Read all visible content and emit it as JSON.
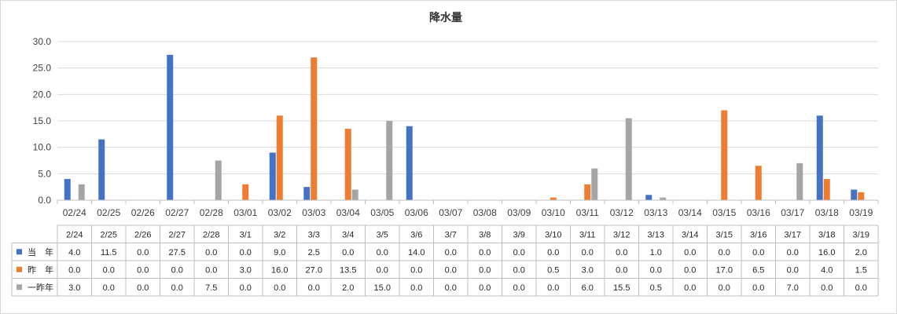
{
  "chart_data": {
    "type": "bar",
    "title": "降水量",
    "xlabel": "",
    "ylabel": "",
    "ylim": [
      0,
      30
    ],
    "yticks": [
      "0.0",
      "5.0",
      "10.0",
      "15.0",
      "20.0",
      "25.0",
      "30.0"
    ],
    "grid": true,
    "legend": "table-left",
    "categories": [
      "02/24",
      "02/25",
      "02/26",
      "02/27",
      "02/28",
      "03/01",
      "03/02",
      "03/03",
      "03/04",
      "03/05",
      "03/06",
      "03/07",
      "03/08",
      "03/09",
      "03/10",
      "03/11",
      "03/12",
      "03/13",
      "03/14",
      "03/15",
      "03/16",
      "03/17",
      "03/18",
      "03/19"
    ],
    "table_categories": [
      "2/24",
      "2/25",
      "2/26",
      "2/27",
      "2/28",
      "3/1",
      "3/2",
      "3/3",
      "3/4",
      "3/5",
      "3/6",
      "3/7",
      "3/8",
      "3/9",
      "3/10",
      "3/11",
      "3/12",
      "3/13",
      "3/14",
      "3/15",
      "3/16",
      "3/17",
      "3/18",
      "3/19"
    ],
    "series": [
      {
        "name": "当　年",
        "color": "#4472c4",
        "values": [
          4.0,
          11.5,
          0.0,
          27.5,
          0.0,
          0.0,
          9.0,
          2.5,
          0.0,
          0.0,
          14.0,
          0.0,
          0.0,
          0.0,
          0.0,
          0.0,
          0.0,
          1.0,
          0.0,
          0.0,
          0.0,
          0.0,
          16.0,
          2.0
        ],
        "labels": [
          "4.0",
          "11.5",
          "0.0",
          "27.5",
          "0.0",
          "0.0",
          "9.0",
          "2.5",
          "0.0",
          "0.0",
          "14.0",
          "0.0",
          "0.0",
          "0.0",
          "0.0",
          "0.0",
          "0.0",
          "1.0",
          "0.0",
          "0.0",
          "0.0",
          "0.0",
          "16.0",
          "2.0"
        ]
      },
      {
        "name": "昨　年",
        "color": "#ed7d31",
        "values": [
          0.0,
          0.0,
          0.0,
          0.0,
          0.0,
          3.0,
          16.0,
          27.0,
          13.5,
          0.0,
          0.0,
          0.0,
          0.0,
          0.0,
          0.5,
          3.0,
          0.0,
          0.0,
          0.0,
          17.0,
          6.5,
          0.0,
          4.0,
          1.5
        ],
        "labels": [
          "0.0",
          "0.0",
          "0.0",
          "0.0",
          "0.0",
          "3.0",
          "16.0",
          "27.0",
          "13.5",
          "0.0",
          "0.0",
          "0.0",
          "0.0",
          "0.0",
          "0.5",
          "3.0",
          "0.0",
          "0.0",
          "0.0",
          "17.0",
          "6.5",
          "0.0",
          "4.0",
          "1.5"
        ]
      },
      {
        "name": "一昨年",
        "color": "#a5a5a5",
        "values": [
          3.0,
          0.0,
          0.0,
          0.0,
          7.5,
          0.0,
          0.0,
          0.0,
          2.0,
          15.0,
          0.0,
          0.0,
          0.0,
          0.0,
          0.0,
          6.0,
          15.5,
          0.5,
          0.0,
          0.0,
          0.0,
          7.0,
          0.0,
          0.0
        ],
        "labels": [
          "3.0",
          "0.0",
          "0.0",
          "0.0",
          "7.5",
          "0.0",
          "0.0",
          "0.0",
          "2.0",
          "15.0",
          "0.0",
          "0.0",
          "0.0",
          "0.0",
          "0.0",
          "6.0",
          "15.5",
          "0.5",
          "0.0",
          "0.0",
          "0.0",
          "7.0",
          "0.0",
          "0.0"
        ]
      }
    ]
  }
}
